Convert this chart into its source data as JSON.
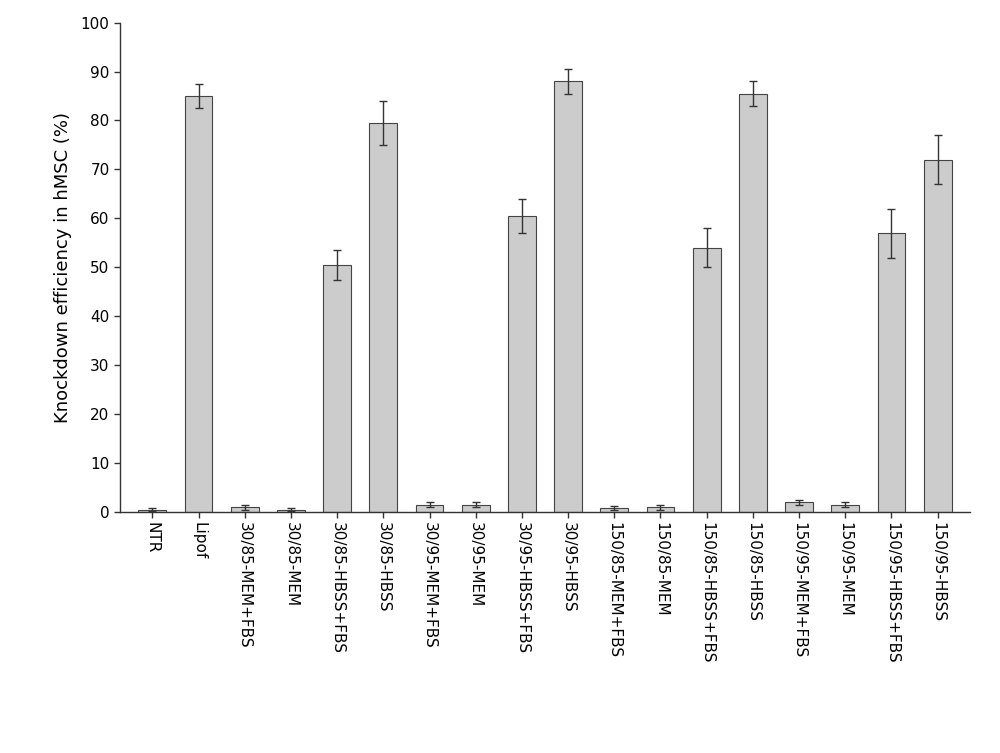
{
  "categories": [
    "NTR",
    "Lipof",
    "30/85-MEM+FBS",
    "30/85-MEM",
    "30/85-HBSS+FBS",
    "30/85-HBSS",
    "30/95-MEM+FBS",
    "30/95-MEM",
    "30/95-HBSS+FBS",
    "30/95-HBSS",
    "150/85-MEM+FBS",
    "150/85-MEM",
    "150/85-HBSS+FBS",
    "150/85-HBSS",
    "150/95-MEM+FBS",
    "150/95-MEM",
    "150/95-HBSS+FBS",
    "150/95-HBSS"
  ],
  "values": [
    0.5,
    85.0,
    1.0,
    0.5,
    50.5,
    79.5,
    1.5,
    1.5,
    60.5,
    88.0,
    0.8,
    1.0,
    54.0,
    85.5,
    2.0,
    1.5,
    57.0,
    72.0
  ],
  "errors": [
    0.3,
    2.5,
    0.5,
    0.3,
    3.0,
    4.5,
    0.5,
    0.5,
    3.5,
    2.5,
    0.4,
    0.5,
    4.0,
    2.5,
    0.5,
    0.5,
    5.0,
    5.0
  ],
  "bar_color": "#cccccc",
  "bar_edge_color": "#444444",
  "error_color": "#333333",
  "ylabel": "Knockdown efficiency in hMSC (%)",
  "ylim": [
    0,
    100
  ],
  "yticks": [
    0,
    10,
    20,
    30,
    40,
    50,
    60,
    70,
    80,
    90,
    100
  ],
  "bar_width": 0.6,
  "background_color": "#ffffff",
  "ylabel_fontsize": 13,
  "tick_fontsize": 11,
  "figsize": [
    10.0,
    7.53
  ],
  "dpi": 100
}
